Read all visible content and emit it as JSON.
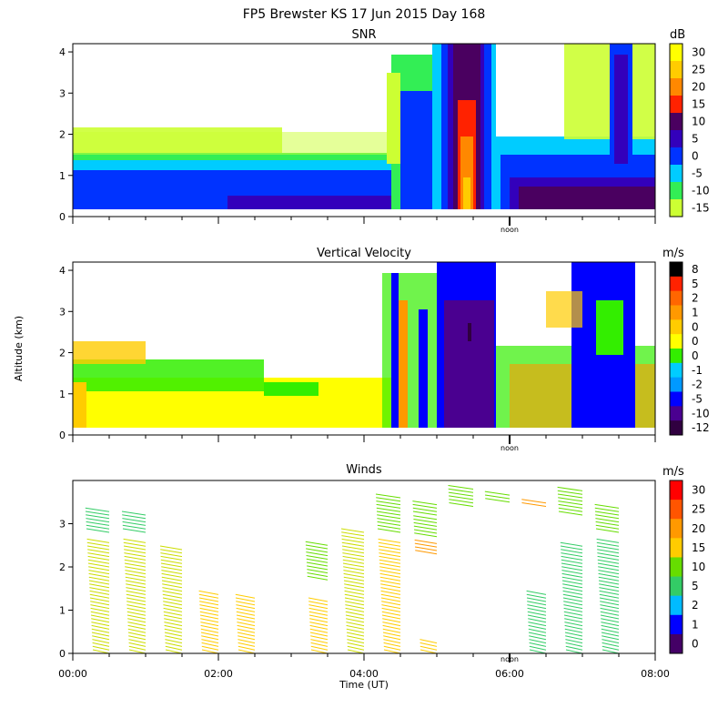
{
  "chart_data": {
    "type": "heatmap",
    "title": "FP5 Brewster KS  17 Jun 2015 Day 168",
    "xlabel": "Time (UT)",
    "ylabel": "Altitude (km)",
    "noon_label": "noon",
    "noon_time_hours": 6.0,
    "xlim": [
      0,
      8
    ],
    "x_tick_values": [
      0,
      2,
      4,
      6,
      8
    ],
    "x_tick_labels": [
      "00:00",
      "02:00",
      "04:00",
      "06:00",
      "08:00"
    ],
    "panels": [
      {
        "name": "snr",
        "title": "SNR",
        "type": "heatmap",
        "ylim": [
          0,
          4.2
        ],
        "y_ticks": [
          0,
          1,
          2,
          3,
          4
        ],
        "colorbar_unit": "dB",
        "colorbar_labels": [
          "30",
          "25",
          "20",
          "15",
          "10",
          "5",
          "0",
          "-5",
          "-10",
          "-15"
        ],
        "colorbar_colors": [
          "#ffff00",
          "#ffcc00",
          "#ff8800",
          "#ff2200",
          "#4a0060",
          "#3300bb",
          "#0033ff",
          "#00ccff",
          "#33ee55",
          "#ccff33"
        ]
      },
      {
        "name": "vertical-velocity",
        "title": "Vertical Velocity",
        "type": "heatmap",
        "ylim": [
          0,
          4.2
        ],
        "y_ticks": [
          0,
          1,
          2,
          3,
          4
        ],
        "colorbar_unit": "m/s",
        "colorbar_labels": [
          "8",
          "5",
          "2",
          "1",
          "0",
          "0",
          "0",
          "-1",
          "-2",
          "-5",
          "-10",
          "-12"
        ],
        "colorbar_colors": [
          "#000000",
          "#ff2200",
          "#ff6600",
          "#ff9900",
          "#ffcc00",
          "#ffff00",
          "#33ee00",
          "#00ccff",
          "#0099ff",
          "#0000ff",
          "#4a0090",
          "#300040"
        ]
      },
      {
        "name": "winds",
        "title": "Winds",
        "type": "barbs",
        "ylim": [
          0,
          4.0
        ],
        "y_ticks": [
          0,
          1,
          2,
          3
        ],
        "colorbar_unit": "m/s",
        "colorbar_labels": [
          "30",
          "25",
          "20",
          "15",
          "10",
          "5",
          "2",
          "1",
          "0"
        ],
        "colorbar_colors": [
          "#ff0000",
          "#ff5500",
          "#ff9900",
          "#ffcc00",
          "#66dd00",
          "#33cc66",
          "#00bbff",
          "#0000ff",
          "#440066"
        ],
        "profiles": [
          {
            "time": 0.5,
            "ranges": [
              [
                0,
                2.6,
                "#ccdd00"
              ],
              [
                2.8,
                3.3,
                "#33cc66"
              ]
            ]
          },
          {
            "time": 1.0,
            "ranges": [
              [
                0,
                2.6,
                "#ccdd00"
              ],
              [
                2.8,
                3.2,
                "#33cc66"
              ]
            ]
          },
          {
            "time": 1.5,
            "ranges": [
              [
                0,
                2.4,
                "#ccdd00"
              ]
            ]
          },
          {
            "time": 2.0,
            "ranges": [
              [
                0,
                1.4,
                "#ffcc00"
              ]
            ]
          },
          {
            "time": 2.5,
            "ranges": [
              [
                0,
                1.3,
                "#ffcc00"
              ]
            ]
          },
          {
            "time": 3.5,
            "ranges": [
              [
                0,
                1.2,
                "#ffcc00"
              ],
              [
                1.7,
                2.5,
                "#66dd00"
              ]
            ]
          },
          {
            "time": 4.0,
            "ranges": [
              [
                0,
                2.8,
                "#ccdd00"
              ]
            ]
          },
          {
            "time": 4.5,
            "ranges": [
              [
                0,
                2.6,
                "#ffcc00"
              ],
              [
                2.8,
                3.6,
                "#66dd00"
              ]
            ]
          },
          {
            "time": 5.0,
            "ranges": [
              [
                0,
                0.3,
                "#ffcc00"
              ],
              [
                2.3,
                2.6,
                "#ff9900"
              ],
              [
                2.7,
                3.1,
                "#66dd00"
              ],
              [
                3.2,
                3.5,
                "#66dd00"
              ]
            ]
          },
          {
            "time": 5.5,
            "ranges": [
              [
                3.4,
                3.8,
                "#66dd00"
              ]
            ]
          },
          {
            "time": 6.0,
            "ranges": [
              [
                3.5,
                3.7,
                "#66dd00"
              ]
            ]
          },
          {
            "time": 6.5,
            "ranges": [
              [
                0,
                1.4,
                "#33cc66"
              ],
              [
                3.4,
                3.5,
                "#ff9900"
              ]
            ]
          },
          {
            "time": 7.0,
            "ranges": [
              [
                0,
                2.5,
                "#33cc66"
              ],
              [
                3.2,
                3.8,
                "#66dd00"
              ]
            ]
          },
          {
            "time": 7.5,
            "ranges": [
              [
                0,
                2.6,
                "#33cc66"
              ],
              [
                2.8,
                3.4,
                "#66dd00"
              ]
            ]
          }
        ]
      }
    ]
  }
}
